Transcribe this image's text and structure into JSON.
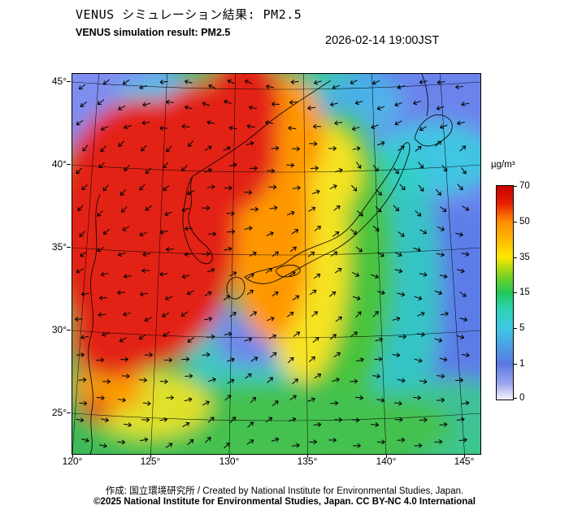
{
  "header": {
    "title_jp": "VENUS シミュレーション結果: PM2.5",
    "title_en": "VENUS simulation result: PM2.5",
    "timestamp": "2026-02-14 19:00JST"
  },
  "map": {
    "x_ticks": [
      "120°",
      "125°",
      "130°",
      "135°",
      "140°",
      "145°"
    ],
    "y_ticks": [
      "45°",
      "40°",
      "35°",
      "30°",
      "25°"
    ]
  },
  "colorbar": {
    "unit": "µg/m³",
    "ticks": [
      "70",
      "50",
      "35",
      "15",
      "5",
      "1",
      "0"
    ],
    "stops": [
      {
        "p": 0.0,
        "c": "#c80000"
      },
      {
        "p": 0.08,
        "c": "#e61e00"
      },
      {
        "p": 0.167,
        "c": "#ff8c00"
      },
      {
        "p": 0.333,
        "c": "#ffe600"
      },
      {
        "p": 0.42,
        "c": "#7dd321"
      },
      {
        "p": 0.5,
        "c": "#22c85a"
      },
      {
        "p": 0.58,
        "c": "#2ed2b4"
      },
      {
        "p": 0.667,
        "c": "#3ec8e6"
      },
      {
        "p": 0.833,
        "c": "#5a78e1"
      },
      {
        "p": 0.93,
        "c": "#a0a8ee"
      },
      {
        "p": 1.0,
        "c": "#f7f5ff"
      }
    ]
  },
  "footer": {
    "credit": "作成: 国立環境研究所 / Created by National Institute for Environmental Studies, Japan.",
    "copyright": "©2025 National Institute for Environmental Studies, Japan. CC BY-NC 4.0 International"
  },
  "chart_data": {
    "type": "heatmap",
    "title": "VENUS simulation result: PM2.5",
    "timestamp": "2026-02-14 19:00JST",
    "unit": "µg/m³",
    "colorbar_levels": [
      0,
      1,
      5,
      15,
      35,
      50,
      70
    ],
    "lon_range": [
      120,
      146
    ],
    "lat_range": [
      23,
      46
    ],
    "overlay": "wind vector arrows",
    "pattern_summary": "PM2.5 above 70 µg/m³ (red) over eastern China, the Yellow Sea and Korea with a red plume extending north near 130E; 35–50 µg/m³ (orange/yellow) band over the Sea of Japan and western Japan; 5–15 µg/m³ (green/cyan) over southern Japan and the East China Sea; below 5 µg/m³ (blue/white) over the Pacific east of Japan and the far northeast"
  }
}
